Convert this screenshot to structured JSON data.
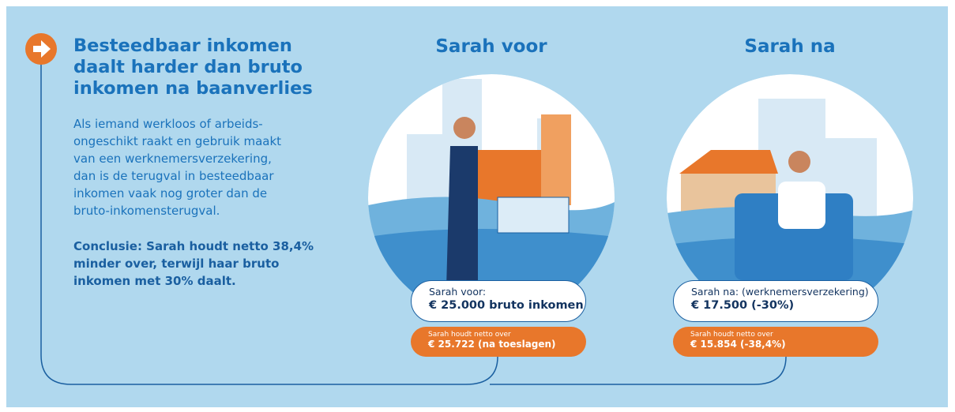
{
  "header": {
    "title_lines": [
      "Besteedbaar inkomen",
      "daalt harder dan bruto",
      "inkomen na baanverlies"
    ]
  },
  "intro_lines": [
    "Als iemand werkloos of arbeids-",
    "ongeschikt raakt en gebruik maakt",
    "van een werknemersverzekering,",
    "dan is de terugval in besteedbaar",
    "inkomen vaak nog groter dan de",
    "bruto-inkomensterugval."
  ],
  "conclusion_lines": [
    "Conclusie: Sarah houdt netto 38,4%",
    "minder over, terwijl haar bruto",
    "inkomen met 30% daalt."
  ],
  "panels": [
    {
      "title": "Sarah voor",
      "label": "Sarah voor:",
      "amount": "€ 25.000 bruto inkomen",
      "net_label": "Sarah houdt netto over",
      "net_amount": "€ 25.722 (na toeslagen)"
    },
    {
      "title": "Sarah na",
      "label": "Sarah na: (werknemersverzekering)",
      "amount": "€ 17.500 (-30%)",
      "net_label": "Sarah houdt netto over",
      "net_amount": "€ 15.854 (-38,4%)"
    }
  ]
}
